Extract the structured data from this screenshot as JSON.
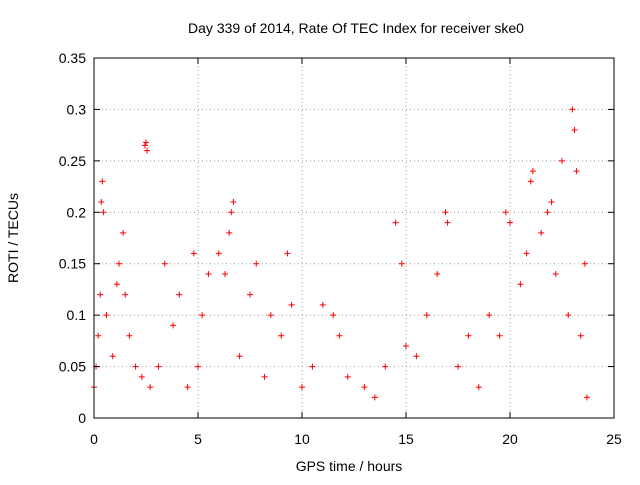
{
  "chart_data": {
    "type": "scatter",
    "title": "Day 339 of 2014, Rate Of TEC Index for receiver ske0",
    "xlabel": "GPS time / hours",
    "ylabel": "ROTI / TECUs",
    "xlim": [
      0,
      25
    ],
    "ylim": [
      0,
      0.35
    ],
    "x_ticks": [
      0,
      5,
      10,
      15,
      20,
      25
    ],
    "x_tick_labels": [
      "0",
      "5",
      "10",
      "15",
      "20",
      "25"
    ],
    "y_ticks": [
      0,
      0.05,
      0.1,
      0.15,
      0.2,
      0.25,
      0.3,
      0.35
    ],
    "y_tick_labels": [
      "0",
      "0.05",
      "0.1",
      "0.15",
      "0.2",
      "0.25",
      "0.3",
      "0.35"
    ],
    "grid": true,
    "marker": "plus",
    "color": "#ff0000",
    "series": [
      {
        "x": [
          0.0,
          0.1,
          0.2,
          0.3,
          0.35,
          0.4,
          0.45,
          0.6,
          0.9,
          1.1,
          1.2,
          1.4,
          1.5,
          1.7,
          2.0,
          2.3,
          2.45,
          2.5,
          2.55,
          2.7,
          3.1,
          3.4,
          3.8,
          4.1,
          4.5,
          4.8,
          5.0,
          5.2,
          5.5,
          6.0,
          6.3,
          6.5,
          6.6,
          6.7,
          7.0,
          7.5,
          7.8,
          8.2,
          8.5,
          9.0,
          9.3,
          9.5,
          10.0,
          10.5,
          11.0,
          11.5,
          11.8,
          12.2,
          13.0,
          13.5,
          14.0,
          14.5,
          14.8,
          15.0,
          15.5,
          16.0,
          16.5,
          16.9,
          17.0,
          17.5,
          18.0,
          18.5,
          19.0,
          19.5,
          19.8,
          20.0,
          20.5,
          20.8,
          21.0,
          21.1,
          21.5,
          21.8,
          22.0,
          22.2,
          22.5,
          22.8,
          23.0,
          23.1,
          23.2,
          23.4,
          23.6,
          23.7
        ],
        "y": [
          0.03,
          0.05,
          0.08,
          0.12,
          0.21,
          0.23,
          0.2,
          0.1,
          0.06,
          0.13,
          0.15,
          0.18,
          0.12,
          0.08,
          0.05,
          0.04,
          0.265,
          0.268,
          0.26,
          0.03,
          0.05,
          0.15,
          0.09,
          0.12,
          0.03,
          0.16,
          0.05,
          0.1,
          0.14,
          0.16,
          0.14,
          0.18,
          0.2,
          0.21,
          0.06,
          0.12,
          0.15,
          0.04,
          0.1,
          0.08,
          0.16,
          0.11,
          0.03,
          0.05,
          0.11,
          0.1,
          0.08,
          0.04,
          0.03,
          0.02,
          0.05,
          0.19,
          0.15,
          0.07,
          0.06,
          0.1,
          0.14,
          0.2,
          0.19,
          0.05,
          0.08,
          0.03,
          0.1,
          0.08,
          0.2,
          0.19,
          0.13,
          0.16,
          0.23,
          0.24,
          0.18,
          0.2,
          0.21,
          0.14,
          0.25,
          0.1,
          0.3,
          0.28,
          0.24,
          0.08,
          0.15,
          0.02
        ]
      }
    ]
  }
}
